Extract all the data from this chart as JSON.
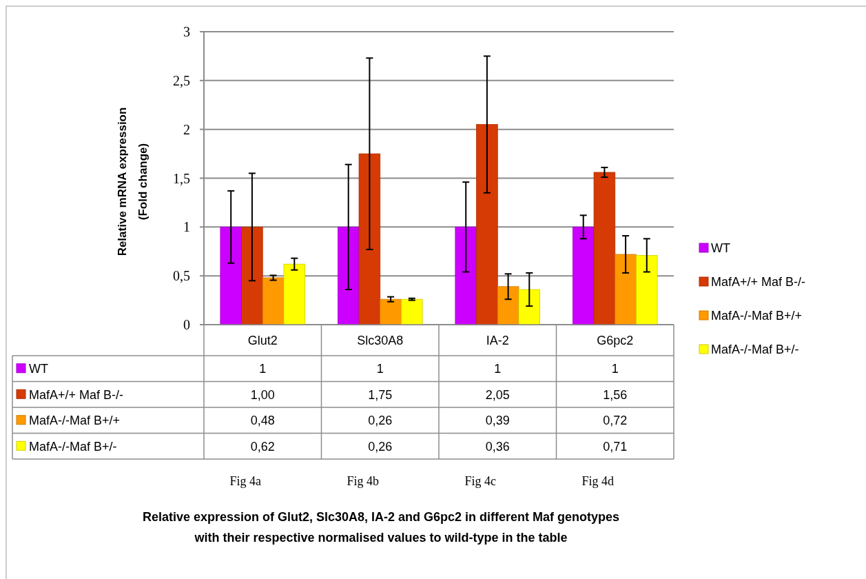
{
  "chart_data": {
    "type": "bar",
    "ylabel": "Relative mRNA expression\n(Fold change)",
    "categories": [
      "Glut2",
      "Slc30A8",
      "IA-2",
      "G6pc2"
    ],
    "series": [
      {
        "name": "WT",
        "color": "#cc00ff",
        "values": [
          1,
          1,
          1,
          1
        ],
        "value_labels": [
          "1",
          "1",
          "1",
          "1"
        ],
        "errors": [
          0.37,
          0.64,
          0.46,
          0.12
        ]
      },
      {
        "name": "MafA+/+ Maf B-/-",
        "color": "#d63a05",
        "values": [
          1.0,
          1.75,
          2.05,
          1.56
        ],
        "value_labels": [
          "1,00",
          "1,75",
          "2,05",
          "1,56"
        ],
        "errors": [
          0.55,
          0.98,
          0.7,
          0.05
        ]
      },
      {
        "name": "MafA-/-Maf B+/+",
        "color": "#ff9900",
        "values": [
          0.48,
          0.26,
          0.39,
          0.72
        ],
        "value_labels": [
          "0,48",
          "0,26",
          "0,39",
          "0,72"
        ],
        "errors": [
          0.025,
          0.025,
          0.13,
          0.19
        ]
      },
      {
        "name": "MafA-/-Maf B+/-",
        "color": "#ffff00",
        "values": [
          0.62,
          0.26,
          0.36,
          0.71
        ],
        "value_labels": [
          "0,62",
          "0,26",
          "0,36",
          "0,71"
        ],
        "errors": [
          0.06,
          0.01,
          0.17,
          0.17
        ]
      }
    ],
    "ylim": [
      0,
      3
    ],
    "yticks": [
      0,
      {
        "value": 0.5,
        "label": "0,5"
      },
      1,
      {
        "value": 1.5,
        "label": "1,5"
      },
      2,
      {
        "value": 2.5,
        "label": "2,5"
      },
      3
    ],
    "grid": "y",
    "legend": "right",
    "annotations": [
      "Fig 4a",
      "Fig 4b",
      "Fig 4c",
      "Fig 4d",
      "Relative expression of Glut2, Slc30A8, IA-2 and G6pc2  in different Maf genotypes with their respective normalised values to wild-type in the table"
    ]
  }
}
